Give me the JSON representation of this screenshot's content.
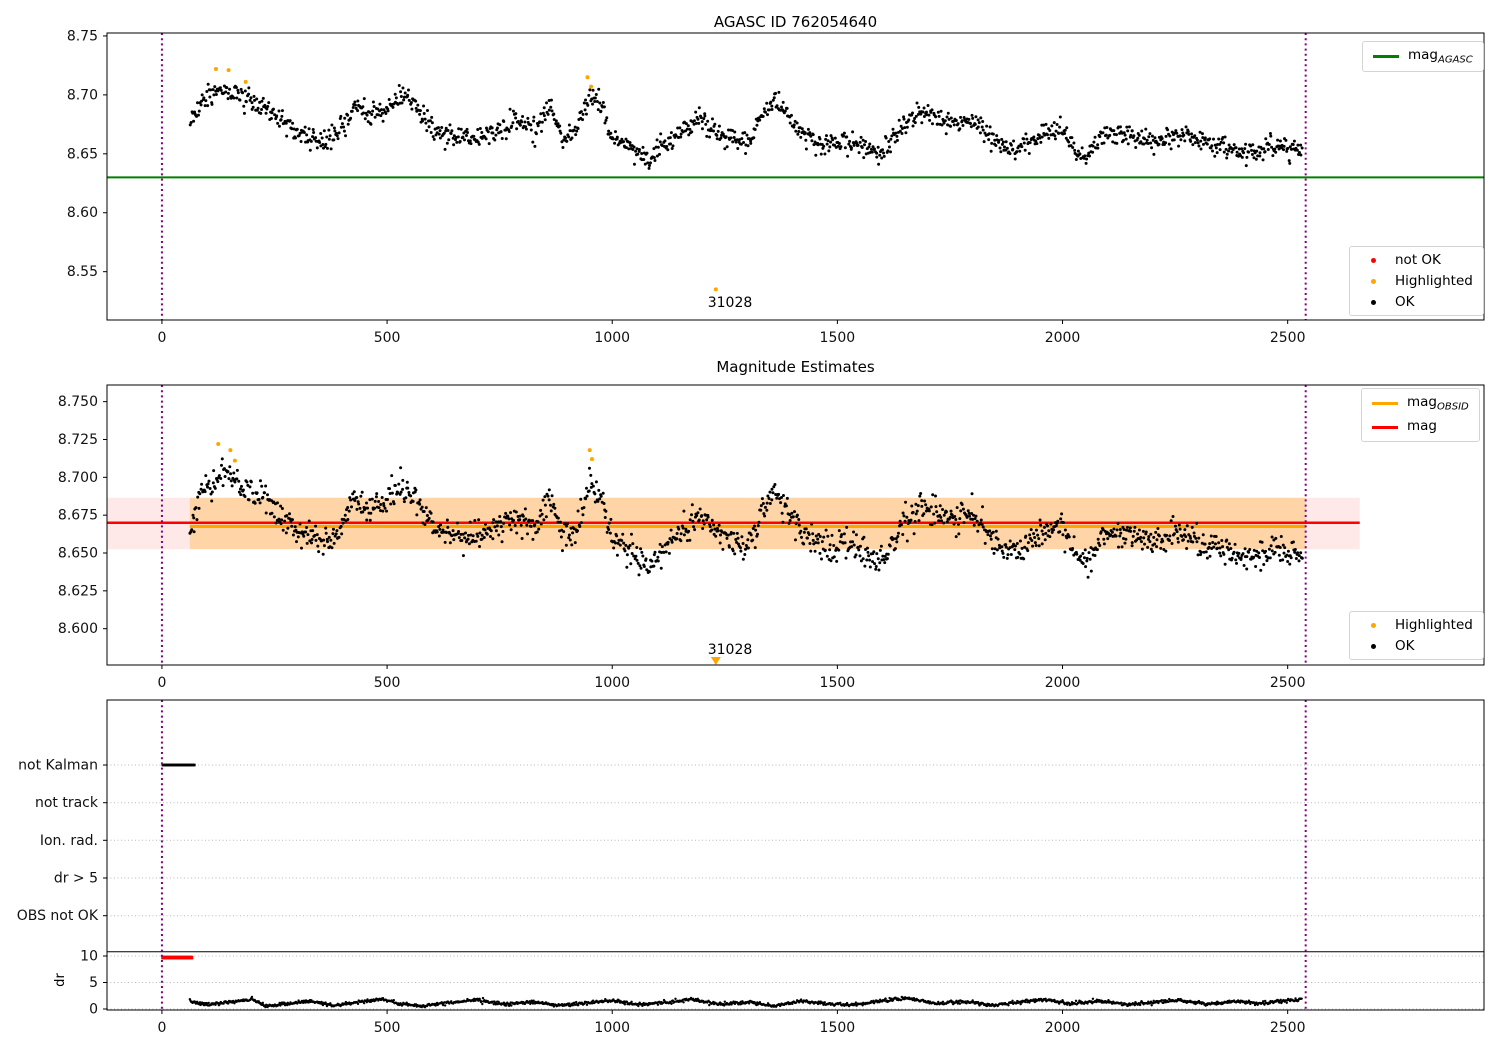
{
  "chart_data": [
    {
      "id": "agasc-mag-plot",
      "type": "scatter",
      "title": "AGASC ID 762054640",
      "xlim": [
        -122,
        2936
      ],
      "ylim": [
        8.509,
        8.7525
      ],
      "xticks": [
        0,
        500,
        1000,
        1500,
        2000,
        2500
      ],
      "yticks": [
        8.75,
        8.7,
        8.65,
        8.6,
        8.55
      ],
      "ytick_labels": [
        "8.75",
        "8.70",
        "8.65",
        "8.60",
        "8.55"
      ],
      "grid": false,
      "legend_line": {
        "label_main": "mag",
        "label_sub": "AGASC",
        "color": "#008000"
      },
      "legend_markers": {
        "entries": [
          {
            "label": "not OK",
            "color": "#ff0000"
          },
          {
            "label": "Highlighted",
            "color": "#ffa500"
          },
          {
            "label": "OK",
            "color": "#000000"
          }
        ]
      },
      "hline": {
        "y": 8.63,
        "color": "#008000",
        "x_start": -122,
        "x_end": 2936
      },
      "vlines": {
        "x": [
          0,
          2540
        ],
        "color": "#800080",
        "style": "dotted"
      },
      "ok_series": {
        "name": "OK",
        "color": "#000000",
        "x_start": 62,
        "x_end": 2532,
        "sigma": 0.0045,
        "density": 0.55,
        "seed": 11,
        "mean_anchors": [
          [
            62,
            8.678
          ],
          [
            90,
            8.696
          ],
          [
            130,
            8.703
          ],
          [
            170,
            8.7
          ],
          [
            210,
            8.693
          ],
          [
            250,
            8.683
          ],
          [
            300,
            8.668
          ],
          [
            350,
            8.661
          ],
          [
            395,
            8.666
          ],
          [
            430,
            8.692
          ],
          [
            460,
            8.681
          ],
          [
            500,
            8.688
          ],
          [
            530,
            8.7
          ],
          [
            560,
            8.691
          ],
          [
            600,
            8.673
          ],
          [
            650,
            8.664
          ],
          [
            700,
            8.662
          ],
          [
            750,
            8.672
          ],
          [
            800,
            8.678
          ],
          [
            830,
            8.67
          ],
          [
            860,
            8.692
          ],
          [
            890,
            8.663
          ],
          [
            920,
            8.67
          ],
          [
            950,
            8.7
          ],
          [
            975,
            8.691
          ],
          [
            1000,
            8.663
          ],
          [
            1040,
            8.655
          ],
          [
            1080,
            8.645
          ],
          [
            1110,
            8.655
          ],
          [
            1150,
            8.668
          ],
          [
            1190,
            8.678
          ],
          [
            1230,
            8.67
          ],
          [
            1270,
            8.662
          ],
          [
            1300,
            8.656
          ],
          [
            1330,
            8.68
          ],
          [
            1360,
            8.698
          ],
          [
            1390,
            8.681
          ],
          [
            1420,
            8.668
          ],
          [
            1450,
            8.661
          ],
          [
            1480,
            8.656
          ],
          [
            1510,
            8.661
          ],
          [
            1540,
            8.657
          ],
          [
            1570,
            8.653
          ],
          [
            1600,
            8.649
          ],
          [
            1640,
            8.672
          ],
          [
            1680,
            8.684
          ],
          [
            1720,
            8.68
          ],
          [
            1760,
            8.676
          ],
          [
            1800,
            8.68
          ],
          [
            1840,
            8.663
          ],
          [
            1870,
            8.656
          ],
          [
            1900,
            8.653
          ],
          [
            1930,
            8.662
          ],
          [
            1960,
            8.668
          ],
          [
            2000,
            8.672
          ],
          [
            2030,
            8.651
          ],
          [
            2060,
            8.649
          ],
          [
            2090,
            8.665
          ],
          [
            2120,
            8.668
          ],
          [
            2150,
            8.665
          ],
          [
            2180,
            8.661
          ],
          [
            2220,
            8.663
          ],
          [
            2260,
            8.666
          ],
          [
            2300,
            8.662
          ],
          [
            2340,
            8.657
          ],
          [
            2380,
            8.653
          ],
          [
            2420,
            8.651
          ],
          [
            2460,
            8.658
          ],
          [
            2500,
            8.655
          ],
          [
            2532,
            8.651
          ]
        ]
      },
      "highlighted_points": [
        [
          120,
          8.722
        ],
        [
          148,
          8.721
        ],
        [
          186,
          8.711
        ],
        [
          945,
          8.715
        ],
        [
          953,
          8.707
        ],
        [
          1230,
          8.535
        ]
      ],
      "annotation": {
        "text": "31028",
        "x": 1230,
        "y": 8.535
      }
    },
    {
      "id": "mag-estimates-plot",
      "type": "scatter",
      "title": "Magnitude Estimates",
      "xlim": [
        -122,
        2936
      ],
      "ylim": [
        8.576,
        8.761
      ],
      "xticks": [
        0,
        500,
        1000,
        1500,
        2000,
        2500
      ],
      "yticks": [
        8.75,
        8.725,
        8.7,
        8.675,
        8.65,
        8.625,
        8.6
      ],
      "ytick_labels": [
        "8.750",
        "8.725",
        "8.700",
        "8.675",
        "8.650",
        "8.625",
        "8.600"
      ],
      "grid": false,
      "legend_lines": {
        "entries": [
          {
            "label_main": "mag",
            "label_sub": "OBSID",
            "color": "#ffa500"
          },
          {
            "label_main": "mag",
            "label_sub": "",
            "color": "#ff0000"
          }
        ]
      },
      "legend_markers": {
        "entries": [
          {
            "label": "Highlighted",
            "color": "#ffa500"
          },
          {
            "label": "OK",
            "color": "#000000"
          }
        ]
      },
      "mag_line": {
        "y": 8.67,
        "color": "#ff0000",
        "x_start": -122,
        "x_end": 2660
      },
      "obsid_line": {
        "y": 8.6685,
        "color": "#ffa500",
        "x_start": 62,
        "x_end": 2540
      },
      "band": {
        "y_low": 8.6525,
        "y_high": 8.6865,
        "outer_color": "rgba(255,0,0,0.09)",
        "outer_x": [
          -122,
          2660
        ],
        "inner_color": "rgba(255,165,0,0.28)",
        "inner_x": [
          62,
          2540
        ]
      },
      "vlines": {
        "x": [
          0,
          2540
        ],
        "color": "#800080",
        "style": "dotted"
      },
      "ok_series": {
        "name": "OK",
        "color": "#000000",
        "x_start": 62,
        "x_end": 2532,
        "sigma": 0.0045,
        "density": 0.55,
        "seed": 23,
        "mean_anchors": [
          [
            62,
            8.67
          ],
          [
            90,
            8.692
          ],
          [
            130,
            8.702
          ],
          [
            170,
            8.697
          ],
          [
            210,
            8.689
          ],
          [
            250,
            8.679
          ],
          [
            300,
            8.664
          ],
          [
            350,
            8.658
          ],
          [
            395,
            8.662
          ],
          [
            430,
            8.688
          ],
          [
            460,
            8.677
          ],
          [
            500,
            8.684
          ],
          [
            530,
            8.696
          ],
          [
            560,
            8.687
          ],
          [
            600,
            8.669
          ],
          [
            650,
            8.661
          ],
          [
            700,
            8.659
          ],
          [
            750,
            8.668
          ],
          [
            800,
            8.674
          ],
          [
            830,
            8.666
          ],
          [
            860,
            8.688
          ],
          [
            890,
            8.659
          ],
          [
            920,
            8.666
          ],
          [
            950,
            8.696
          ],
          [
            975,
            8.687
          ],
          [
            1000,
            8.659
          ],
          [
            1040,
            8.651
          ],
          [
            1080,
            8.641
          ],
          [
            1110,
            8.651
          ],
          [
            1150,
            8.664
          ],
          [
            1190,
            8.674
          ],
          [
            1230,
            8.666
          ],
          [
            1270,
            8.658
          ],
          [
            1300,
            8.652
          ],
          [
            1330,
            8.676
          ],
          [
            1360,
            8.694
          ],
          [
            1390,
            8.677
          ],
          [
            1420,
            8.664
          ],
          [
            1450,
            8.657
          ],
          [
            1480,
            8.652
          ],
          [
            1510,
            8.657
          ],
          [
            1540,
            8.653
          ],
          [
            1570,
            8.649
          ],
          [
            1600,
            8.643
          ],
          [
            1640,
            8.668
          ],
          [
            1680,
            8.68
          ],
          [
            1720,
            8.676
          ],
          [
            1760,
            8.672
          ],
          [
            1800,
            8.676
          ],
          [
            1840,
            8.659
          ],
          [
            1870,
            8.652
          ],
          [
            1900,
            8.649
          ],
          [
            1930,
            8.658
          ],
          [
            1960,
            8.664
          ],
          [
            2000,
            8.668
          ],
          [
            2030,
            8.646
          ],
          [
            2060,
            8.645
          ],
          [
            2090,
            8.661
          ],
          [
            2120,
            8.664
          ],
          [
            2150,
            8.661
          ],
          [
            2180,
            8.657
          ],
          [
            2220,
            8.659
          ],
          [
            2260,
            8.662
          ],
          [
            2300,
            8.658
          ],
          [
            2340,
            8.653
          ],
          [
            2380,
            8.649
          ],
          [
            2420,
            8.646
          ],
          [
            2460,
            8.654
          ],
          [
            2500,
            8.651
          ],
          [
            2532,
            8.646
          ]
        ]
      },
      "highlighted_points": [
        [
          125,
          8.722
        ],
        [
          152,
          8.718
        ],
        [
          162,
          8.711
        ],
        [
          950,
          8.718
        ],
        [
          955,
          8.712
        ]
      ],
      "annotation": {
        "text": "31028",
        "x": 1230,
        "marker": "triangle-down",
        "marker_color": "#ffa500"
      }
    },
    {
      "id": "flags-plot",
      "type": "scatter",
      "title": "",
      "xlim": [
        -122,
        2936
      ],
      "xticks": [
        0,
        500,
        1000,
        1500,
        2000,
        2500
      ],
      "flag_rows": [
        "not Kalman",
        "not track",
        "Ion. rad.",
        "dr > 5",
        "OBS not OK"
      ],
      "dr_ticks": [
        10,
        5,
        0
      ],
      "dr_axis_label": "dr",
      "grid": true,
      "grid_color": "#b8b8b8",
      "separator_y_dr": 10.8,
      "vlines": {
        "x": [
          0,
          2540
        ],
        "color": "#800080",
        "style": "dotted"
      },
      "flag_segments": [
        {
          "row": 0,
          "label": "not Kalman",
          "x_start": 2,
          "x_end": 72,
          "color": "#000000"
        }
      ],
      "dr_flag_segments": [
        {
          "y": 9.7,
          "x_start": 2,
          "x_end": 67,
          "color": "#ff0000"
        }
      ],
      "dr_series": {
        "name": "dr",
        "color": "#000000",
        "x_start": 62,
        "x_end": 2532,
        "sigma": 0.16,
        "step": 1.5,
        "seed": 7,
        "clamp": [
          0.12,
          2.6
        ],
        "mean_anchors": [
          [
            62,
            1.4
          ],
          [
            100,
            0.8
          ],
          [
            140,
            1.2
          ],
          [
            200,
            1.8
          ],
          [
            230,
            0.6
          ],
          [
            280,
            1.0
          ],
          [
            330,
            1.5
          ],
          [
            380,
            0.7
          ],
          [
            430,
            1.2
          ],
          [
            480,
            1.9
          ],
          [
            530,
            1.0
          ],
          [
            580,
            0.6
          ],
          [
            640,
            1.3
          ],
          [
            700,
            1.7
          ],
          [
            760,
            0.9
          ],
          [
            820,
            1.4
          ],
          [
            880,
            0.7
          ],
          [
            940,
            1.1
          ],
          [
            1000,
            1.6
          ],
          [
            1060,
            0.8
          ],
          [
            1120,
            1.2
          ],
          [
            1180,
            1.8
          ],
          [
            1240,
            0.9
          ],
          [
            1300,
            1.3
          ],
          [
            1360,
            0.6
          ],
          [
            1420,
            1.5
          ],
          [
            1480,
            1.0
          ],
          [
            1540,
            0.8
          ],
          [
            1600,
            1.6
          ],
          [
            1660,
            2.0
          ],
          [
            1720,
            1.0
          ],
          [
            1780,
            1.4
          ],
          [
            1840,
            0.7
          ],
          [
            1900,
            1.2
          ],
          [
            1960,
            1.8
          ],
          [
            2020,
            1.0
          ],
          [
            2080,
            1.5
          ],
          [
            2140,
            0.8
          ],
          [
            2200,
            1.3
          ],
          [
            2260,
            1.7
          ],
          [
            2320,
            0.9
          ],
          [
            2380,
            1.4
          ],
          [
            2440,
            1.1
          ],
          [
            2500,
            1.6
          ],
          [
            2532,
            1.8
          ]
        ]
      }
    }
  ]
}
